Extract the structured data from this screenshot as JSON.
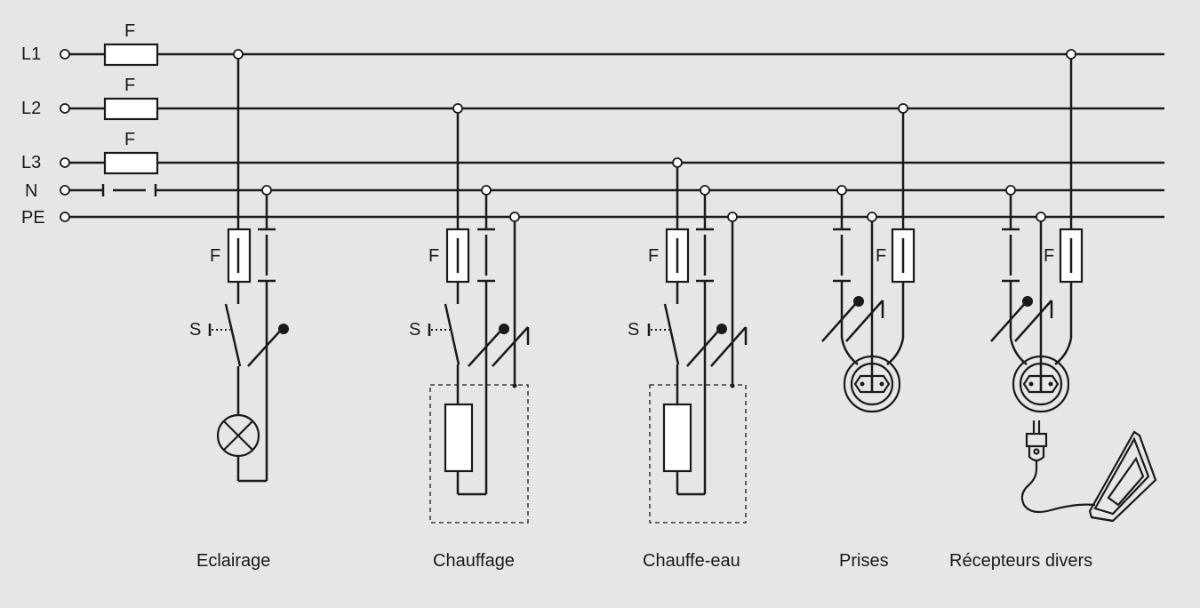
{
  "lines": {
    "l1": "L1",
    "l2": "L2",
    "l3": "L3",
    "n": "N",
    "pe": "PE"
  },
  "symbols": {
    "fuse": "F",
    "switch": "S"
  },
  "circuits": {
    "eclairage": "Eclairage",
    "chauffage": "Chauffage",
    "chauffe_eau": "Chauffe-eau",
    "prises": "Prises",
    "recepteurs": "Récepteurs divers"
  },
  "colors": {
    "background": "#e6e6e6",
    "line": "#1a1a1a"
  }
}
